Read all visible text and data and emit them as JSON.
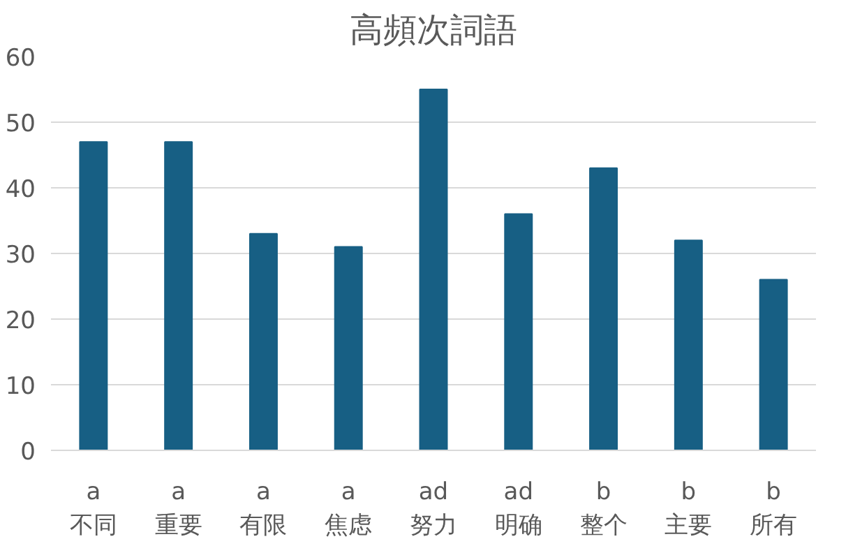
{
  "chart_data": {
    "type": "bar",
    "title": "高頻次詞語",
    "categories": [
      "a\n不同",
      "a\n重要",
      "a\n有限",
      "a\n焦虑",
      "ad\n努力",
      "ad\n明确",
      "b\n整个",
      "b\n主要",
      "b\n所有"
    ],
    "values": [
      47,
      47,
      33,
      31,
      55,
      36,
      43,
      32,
      26
    ],
    "color": "#175f84",
    "ylim": [
      0,
      60
    ],
    "yticks": [
      0,
      10,
      20,
      30,
      40,
      50,
      60
    ],
    "grid": "y"
  }
}
